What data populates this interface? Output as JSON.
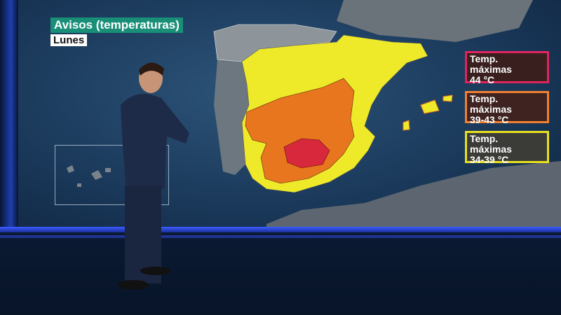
{
  "header": {
    "title": "Avisos (temperaturas)",
    "day": "Lunes"
  },
  "legend": [
    {
      "line1": "Temp.",
      "line2": "máximas",
      "range": "44 °C",
      "color": "#e0245e",
      "fill": "#3a1f1f"
    },
    {
      "line1": "Temp.",
      "line2": "máximas",
      "range": "39-43 °C",
      "color": "#f08030",
      "fill": "#3e2320"
    },
    {
      "line1": "Temp.",
      "line2": "máximas",
      "range": "34-39 °C",
      "color": "#e8e020",
      "fill": "#3b3c38"
    }
  ],
  "colors": {
    "warning_red": "#d8283c",
    "warning_orange": "#e8761e",
    "warning_yellow": "#eeea2a",
    "no_warning": "#8d949a"
  }
}
